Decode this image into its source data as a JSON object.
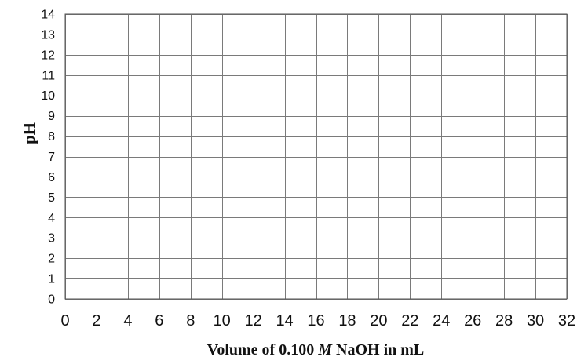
{
  "chart_data": {
    "type": "line",
    "title": "",
    "xlabel": {
      "before": "Volume of 0.100 ",
      "italic": "M",
      "after": " NaOH in mL"
    },
    "ylabel": "pH",
    "xlim": [
      0,
      32
    ],
    "ylim": [
      0,
      14
    ],
    "x_ticks": [
      "0",
      "2",
      "4",
      "6",
      "8",
      "10",
      "12",
      "14",
      "16",
      "18",
      "20",
      "22",
      "24",
      "26",
      "28",
      "30",
      "32"
    ],
    "y_ticks": [
      "0",
      "1",
      "2",
      "3",
      "4",
      "5",
      "6",
      "7",
      "8",
      "9",
      "10",
      "11",
      "12",
      "13",
      "14"
    ],
    "grid": true,
    "series": []
  }
}
